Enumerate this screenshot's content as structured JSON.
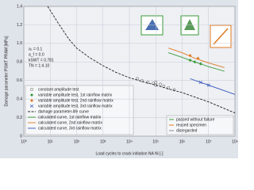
{
  "chart_data": {
    "type": "line",
    "y_label": "Damage parameter PSWT PRAM [MPa]",
    "x_label": "Load cycles to crack initiation NA Ni [-]",
    "log_x": true,
    "xlim": [
      1,
      100000000
    ],
    "xticks": [
      {
        "value": 1,
        "label": "10⁰"
      },
      {
        "value": 10,
        "label": "10¹"
      },
      {
        "value": 100,
        "label": "10²"
      },
      {
        "value": 1000,
        "label": "10³"
      },
      {
        "value": 10000,
        "label": "10⁴"
      },
      {
        "value": 100000,
        "label": "10⁵"
      },
      {
        "value": 1000000,
        "label": "10⁶"
      },
      {
        "value": 10000000,
        "label": "10⁷"
      },
      {
        "value": 100000000,
        "label": "10⁸"
      }
    ],
    "ylim": [
      0,
      1.4
    ],
    "yticks": [
      0,
      0.2,
      0.4,
      0.6,
      0.8,
      {
        "value": 1,
        "label": "1.0"
      },
      1.2,
      1.4
    ],
    "grid": true,
    "annotations": [
      "aₛ = 0.1",
      "a_f = 0.0",
      "kSWT = 0.781",
      "TN = 1:4.10"
    ],
    "series": [
      {
        "name": "constant amplitude test",
        "color": "#777777",
        "mark": "circle",
        "x": [
          20000,
          30000,
          50000,
          80000,
          100000,
          150000,
          200000,
          100000,
          300000,
          500000
        ],
        "values": [
          0.62,
          0.6,
          0.58,
          0.57,
          0.55,
          0.56,
          0.54,
          0.58,
          0.52,
          0.5
        ]
      },
      {
        "name": "variable amplitude test, 1st rainflow matrix",
        "color": "#3a9a3a",
        "mark": "diamond",
        "x": [
          2000000,
          3000000,
          5000000
        ],
        "values": [
          0.82,
          0.8,
          0.78
        ]
      },
      {
        "name": "variable amplitude test, 2nd rainflow matrix",
        "color": "#e07a20",
        "mark": "diamond",
        "x": [
          2000000,
          4000000
        ],
        "values": [
          0.87,
          0.84
        ]
      },
      {
        "name": "variable amplitude test, 3rd rainflow matrix",
        "color": "#3355bb",
        "mark": "cross",
        "x": [
          5000000,
          10000000
        ],
        "values": [
          0.58,
          0.55
        ]
      },
      {
        "name": "damage parameter-life curve",
        "color": "#222222",
        "mark": "line",
        "dash": true,
        "x": [
          8,
          20,
          50,
          100,
          300,
          1000,
          3000,
          10000,
          30000,
          100000,
          300000,
          1000000,
          10000000,
          100000000
        ],
        "values": [
          1.4,
          1.22,
          1.05,
          0.95,
          0.85,
          0.76,
          0.69,
          0.63,
          0.59,
          0.55,
          0.51,
          0.47,
          0.37,
          0.25
        ]
      },
      {
        "name": "calculated curve, 1st rainflow matrix",
        "color": "#3a9a3a",
        "mark": "line",
        "x": [
          300000,
          1000000,
          3000000,
          10000000,
          40000000
        ],
        "values": [
          0.9,
          0.85,
          0.8,
          0.75,
          0.7
        ]
      },
      {
        "name": "calculated curve, 2nd rainflow matrix",
        "color": "#e07a20",
        "mark": "line",
        "x": [
          300000,
          1000000,
          3000000,
          10000000,
          40000000
        ],
        "values": [
          0.95,
          0.9,
          0.84,
          0.79,
          0.74
        ]
      },
      {
        "name": "calculated curve, 3rd rainflow matrix",
        "color": "#3355bb",
        "mark": "line",
        "x": [
          2000000,
          10000000,
          100000000
        ],
        "values": [
          0.62,
          0.55,
          0.45
        ]
      }
    ],
    "legend2": [
      "passed without failure",
      "reused specimen",
      "disregarded"
    ]
  }
}
